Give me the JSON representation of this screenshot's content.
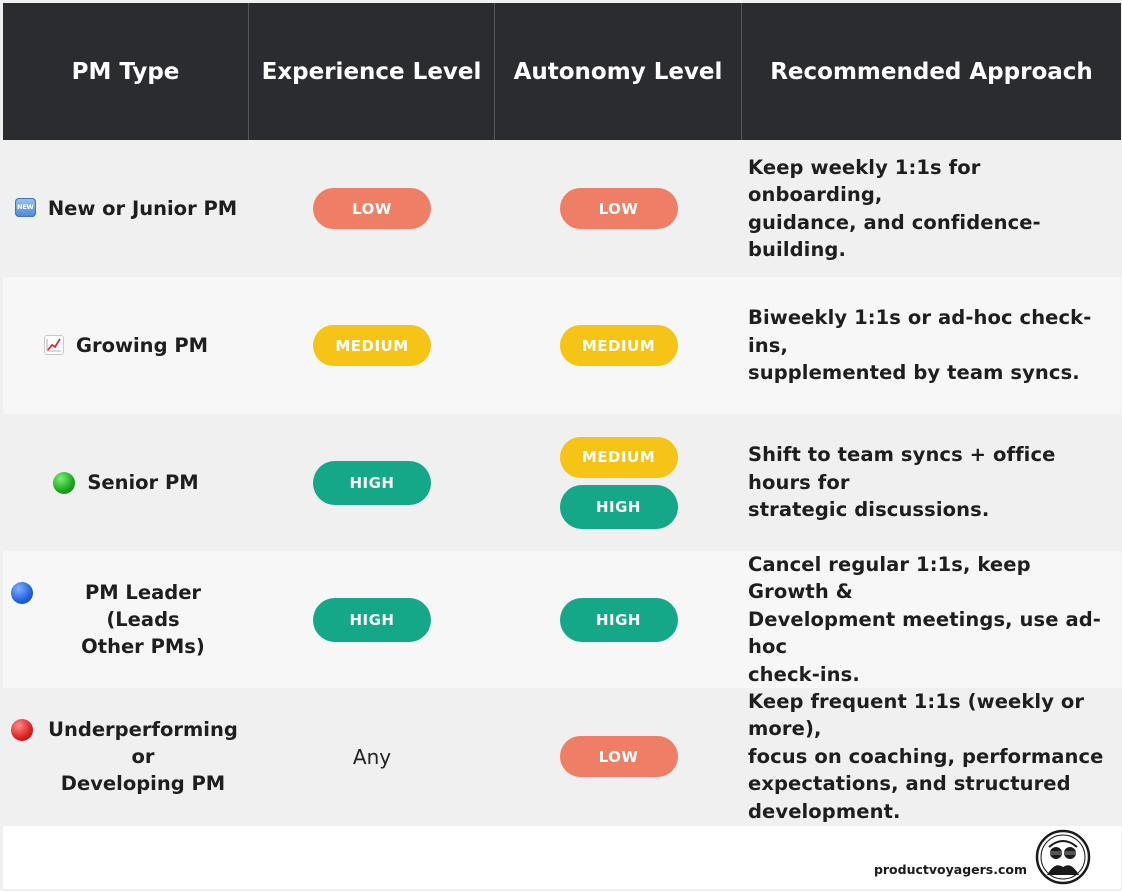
{
  "header": {
    "col1": "PM Type",
    "col2": "Experience Level",
    "col3": "Autonomy Level",
    "col4": "Recommended Approach"
  },
  "rows": [
    {
      "icon": "new-badge-icon",
      "icon_text": "NEW",
      "type_line1": "New or Junior PM",
      "type_line2": "",
      "experience": "LOW",
      "autonomy": [
        "LOW"
      ],
      "approach_line1": "Keep weekly 1:1s for onboarding,",
      "approach_line2": "guidance, and confidence-building.",
      "approach_line3": "",
      "approach_line4": ""
    },
    {
      "icon": "chart-increasing-icon",
      "type_line1": "Growing PM",
      "type_line2": "",
      "experience": "MEDIUM",
      "autonomy": [
        "MEDIUM"
      ],
      "approach_line1": "Biweekly 1:1s or ad-hoc check-ins,",
      "approach_line2": "supplemented by team syncs.",
      "approach_line3": "",
      "approach_line4": ""
    },
    {
      "icon": "green-circle-icon",
      "type_line1": "Senior PM",
      "type_line2": "",
      "experience": "HIGH",
      "autonomy": [
        "MEDIUM",
        "HIGH"
      ],
      "approach_line1": "Shift to team syncs + office hours for",
      "approach_line2": "strategic discussions.",
      "approach_line3": "",
      "approach_line4": ""
    },
    {
      "icon": "blue-circle-icon",
      "type_line1": "PM Leader (Leads",
      "type_line2": "Other PMs)",
      "experience": "HIGH",
      "autonomy": [
        "HIGH"
      ],
      "approach_line1": "Cancel regular 1:1s, keep Growth &",
      "approach_line2": "Development meetings, use ad-hoc",
      "approach_line3": "check-ins.",
      "approach_line4": ""
    },
    {
      "icon": "red-circle-icon",
      "type_line1": "Underperforming or",
      "type_line2": "Developing PM",
      "experience": "Any",
      "autonomy": [
        "LOW"
      ],
      "approach_line1": "Keep frequent 1:1s (weekly or more),",
      "approach_line2": "focus on coaching, performance",
      "approach_line3": "expectations, and structured",
      "approach_line4": "development."
    }
  ],
  "footer": {
    "brand": "productvoyagers.com",
    "logo_icon": "product-voyagers-logo-icon"
  },
  "colors": {
    "header_bg": "#2b2c30",
    "low": "#ef7e66",
    "medium": "#f6c317",
    "high": "#14a888"
  }
}
